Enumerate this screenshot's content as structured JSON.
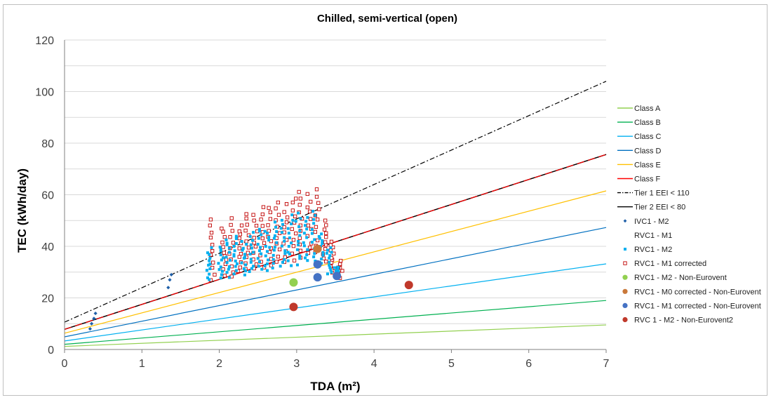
{
  "chart_data": {
    "type": "scatter",
    "title": "Chilled, semi-vertical  (open)",
    "xlabel": "TDA (m²)",
    "ylabel": "TEC (kWh/day)",
    "xlim": [
      0,
      7
    ],
    "ylim": [
      0,
      120
    ],
    "x_ticks": [
      "0",
      "1",
      "2",
      "3",
      "4",
      "5",
      "6",
      "7"
    ],
    "y_ticks": [
      "0",
      "20",
      "40",
      "60",
      "80",
      "100",
      "120"
    ],
    "grid": "horizontal",
    "legend_position": "right",
    "lines": [
      {
        "name": "Class A",
        "color": "#92d050",
        "dash": "",
        "width": 1.2,
        "x": [
          0,
          7
        ],
        "y": [
          1.2,
          9.5
        ]
      },
      {
        "name": "Class B",
        "color": "#00b050",
        "dash": "",
        "width": 1.2,
        "x": [
          0,
          7
        ],
        "y": [
          2.0,
          19.0
        ]
      },
      {
        "name": "Class C",
        "color": "#00b0f0",
        "dash": "",
        "width": 1.2,
        "x": [
          0,
          7
        ],
        "y": [
          3.3,
          33.2
        ]
      },
      {
        "name": "Class D",
        "color": "#0070c0",
        "dash": "",
        "width": 1.2,
        "x": [
          0,
          7
        ],
        "y": [
          4.9,
          47.3
        ]
      },
      {
        "name": "Class E",
        "color": "#ffc000",
        "dash": "",
        "width": 1.2,
        "x": [
          0,
          7
        ],
        "y": [
          6.3,
          61.5
        ]
      },
      {
        "name": "Class F",
        "color": "#ff0000",
        "dash": "",
        "width": 1.2,
        "x": [
          0,
          7
        ],
        "y": [
          7.8,
          75.6
        ]
      },
      {
        "name": "Tier 1 EEI < 110",
        "color": "#000000",
        "dash": "7,3,2,3",
        "width": 1.2,
        "x": [
          0,
          7
        ],
        "y": [
          10.6,
          104.0
        ]
      },
      {
        "name": "Tier 2 EEI < 80",
        "color": "#000000",
        "dash": "",
        "width": 1.4,
        "x": [
          0,
          7
        ],
        "y": [
          7.8,
          75.6
        ]
      }
    ],
    "series": [
      {
        "name": "IVC1 - M2",
        "marker": "diamond",
        "color": "#1f5fa8",
        "x": [
          0.33,
          0.35,
          0.38,
          0.4,
          1.34,
          1.36,
          1.38
        ],
        "y": [
          8,
          10,
          12,
          14,
          24,
          27,
          29
        ]
      },
      {
        "name": "RVC1 - M1",
        "marker": "none",
        "color": "#ffffff",
        "x": [],
        "y": []
      },
      {
        "name": "RVC1 - M2",
        "marker": "square-small",
        "color": "#00b0f0",
        "x": [],
        "y": []
      },
      {
        "name": "RVC1 - M1 corrected",
        "marker": "square-open",
        "color": "#c00000",
        "x": [],
        "y": []
      },
      {
        "name": "RVC1 - M2 - Non-Eurovent",
        "marker": "circle",
        "color": "#92d050",
        "x": [
          2.96
        ],
        "y": [
          26
        ]
      },
      {
        "name": "RVC1 - M0 corrected - Non-Eurovent",
        "marker": "circle",
        "color": "#c9783a",
        "x": [
          3.27
        ],
        "y": [
          39
        ]
      },
      {
        "name": "RVC1 - M1 corrected - Non-Eurovent",
        "marker": "circle",
        "color": "#4472c4",
        "x": [
          3.27,
          3.27,
          3.52
        ],
        "y": [
          33,
          28,
          28.5
        ]
      },
      {
        "name": "RVC 1 - M2 - Non-Eurovent2",
        "marker": "circle",
        "color": "#c0392b",
        "x": [
          2.96,
          4.45
        ],
        "y": [
          16.5,
          25
        ]
      }
    ],
    "clusters": [
      {
        "x": 1.87,
        "m2_range": [
          27,
          39
        ],
        "m1_range": [
          27,
          50
        ]
      },
      {
        "x": 2.02,
        "m2_range": [
          28,
          40
        ],
        "m1_range": [
          29,
          47
        ]
      },
      {
        "x": 2.12,
        "m2_range": [
          28,
          43
        ],
        "m1_range": [
          28,
          51
        ]
      },
      {
        "x": 2.22,
        "m2_range": [
          29,
          44
        ],
        "m1_range": [
          30,
          48
        ]
      },
      {
        "x": 2.32,
        "m2_range": [
          29,
          42
        ],
        "m1_range": [
          31,
          53
        ]
      },
      {
        "x": 2.42,
        "m2_range": [
          30,
          45
        ],
        "m1_range": [
          31,
          52
        ]
      },
      {
        "x": 2.52,
        "m2_range": [
          31,
          47
        ],
        "m1_range": [
          32,
          55
        ]
      },
      {
        "x": 2.62,
        "m2_range": [
          31,
          46
        ],
        "m1_range": [
          33,
          55
        ]
      },
      {
        "x": 2.72,
        "m2_range": [
          32,
          49
        ],
        "m1_range": [
          34,
          57
        ]
      },
      {
        "x": 2.82,
        "m2_range": [
          32,
          50
        ],
        "m1_range": [
          34,
          56
        ]
      },
      {
        "x": 2.92,
        "m2_range": [
          33,
          52
        ],
        "m1_range": [
          35,
          59
        ]
      },
      {
        "x": 3.02,
        "m2_range": [
          33,
          53
        ],
        "m1_range": [
          36,
          61
        ]
      },
      {
        "x": 3.12,
        "m2_range": [
          34,
          51
        ],
        "m1_range": [
          37,
          60
        ]
      },
      {
        "x": 3.22,
        "m2_range": [
          34,
          54
        ],
        "m1_range": [
          38,
          62
        ]
      },
      {
        "x": 3.32,
        "m2_range": [
          33,
          45
        ],
        "m1_range": [
          34,
          50
        ]
      },
      {
        "x": 3.42,
        "m2_range": [
          29,
          40
        ],
        "m1_range": [
          30,
          42
        ]
      },
      {
        "x": 3.52,
        "m2_range": [
          28,
          32
        ],
        "m1_range": [
          28,
          34
        ]
      }
    ]
  }
}
